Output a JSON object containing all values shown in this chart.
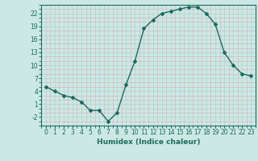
{
  "x": [
    0,
    1,
    2,
    3,
    4,
    5,
    6,
    7,
    8,
    9,
    10,
    11,
    12,
    13,
    14,
    15,
    16,
    17,
    18,
    19,
    20,
    21,
    22,
    23
  ],
  "y": [
    5,
    4,
    3,
    2.5,
    1.5,
    -0.5,
    -0.5,
    -3,
    -1,
    5.5,
    11,
    18.5,
    20.5,
    22,
    22.5,
    23,
    23.5,
    23.5,
    22,
    19.5,
    13,
    10,
    8,
    7.5
  ],
  "line_color": "#1a6b5e",
  "marker": "D",
  "marker_size": 2.0,
  "bg_color": "#cce8e4",
  "major_grid_color": "#b8d4d0",
  "minor_grid_color": "#d4b8bc",
  "xlabel": "Humidex (Indice chaleur)",
  "xlim": [
    -0.5,
    23.5
  ],
  "ylim": [
    -4,
    24
  ],
  "yticks": [
    -2,
    1,
    4,
    7,
    10,
    13,
    16,
    19,
    22
  ],
  "xticks": [
    0,
    1,
    2,
    3,
    4,
    5,
    6,
    7,
    8,
    9,
    10,
    11,
    12,
    13,
    14,
    15,
    16,
    17,
    18,
    19,
    20,
    21,
    22,
    23
  ],
  "spine_color": "#1a6b5e",
  "tick_label_fontsize": 5.5,
  "xlabel_fontsize": 6.5
}
